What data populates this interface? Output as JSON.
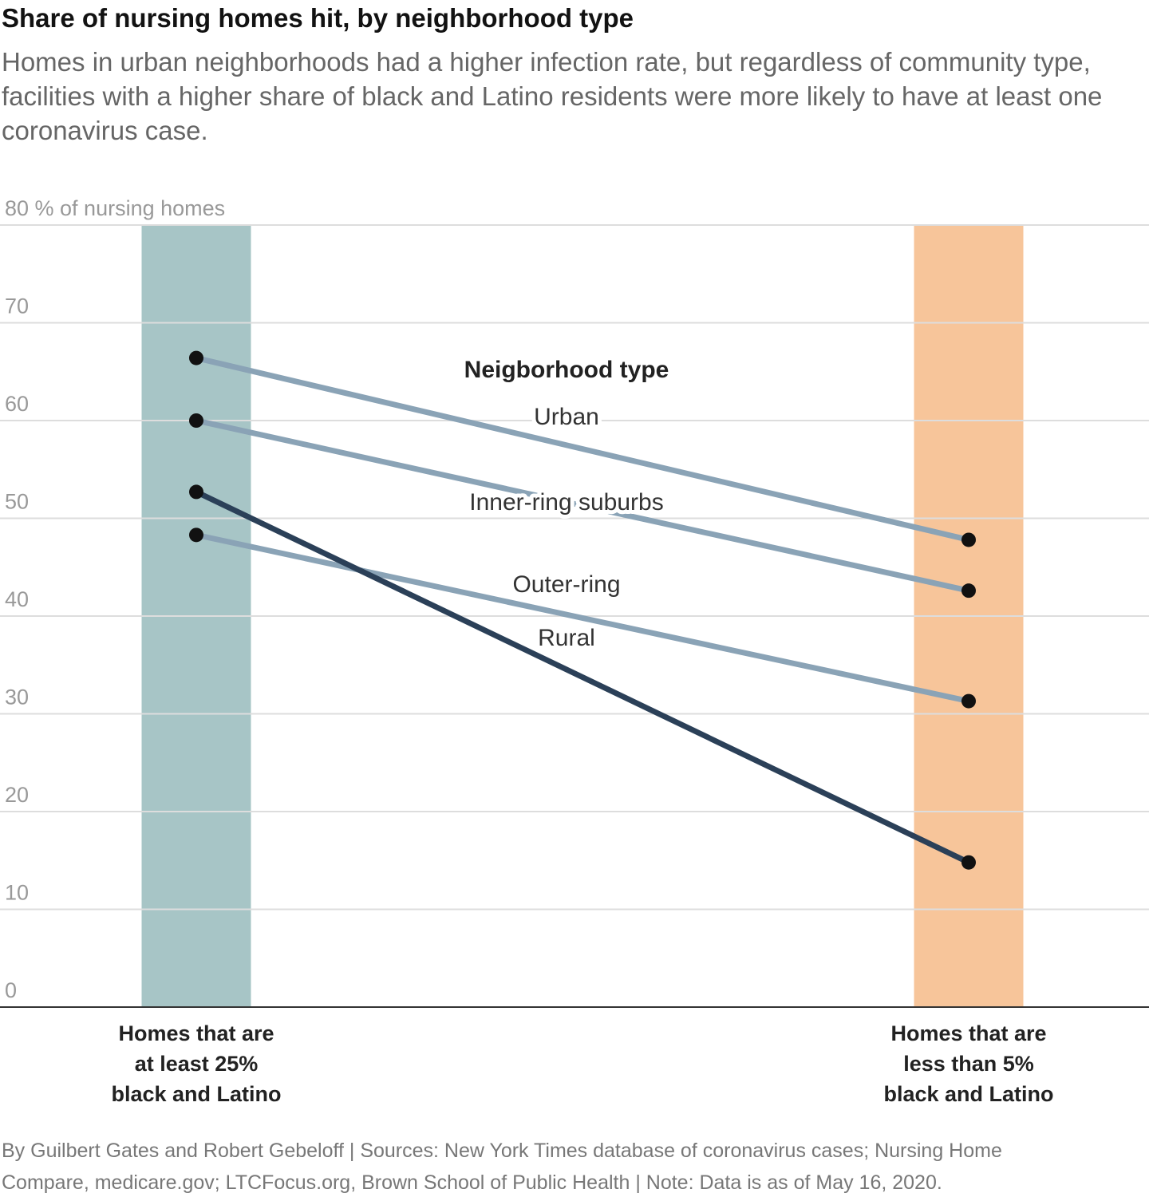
{
  "title": "Share of nursing homes hit, by neighborhood type",
  "subtitle": "Homes in urban neighborhoods had a higher infection rate, but regardless of community type, facilities with a higher share of black and Latino residents were more likely to have at least one coronavirus case.",
  "footer": {
    "line1": "By Guilbert Gates and Robert Gebeloff | Sources: New York Times database of coronavirus cases; Nursing Home",
    "line2": "Compare, medicare.gov; LTCFocus.org, Brown School of Public Health | Note: Data is as of May 16, 2020."
  },
  "colors": {
    "left_band": "#a7c5c6",
    "right_band": "#f7c59a",
    "light_line": "#8aa3b6",
    "dark_line": "#2b4058",
    "dot": "#111111",
    "grid": "#dddddd"
  },
  "chart_data": {
    "type": "slope",
    "ylabel": "% of nursing homes",
    "ylim": [
      0,
      80
    ],
    "yticks": [
      0,
      10,
      20,
      30,
      40,
      50,
      60,
      70,
      80
    ],
    "top_tick_label": "80 % of nursing homes",
    "categories": [
      [
        "Homes that are",
        "at least 25%",
        "black and Latino"
      ],
      [
        "Homes that are",
        "less than 5%",
        "black and Latino"
      ]
    ],
    "legend_title": "Neigborhood type",
    "series": [
      {
        "name": "Urban",
        "values": [
          66.4,
          47.8
        ],
        "style": "light"
      },
      {
        "name": "Inner-ring suburbs",
        "values": [
          60.0,
          42.6
        ],
        "style": "light"
      },
      {
        "name": "Outer-ring",
        "values": [
          48.3,
          31.3
        ],
        "style": "light"
      },
      {
        "name": "Rural",
        "values": [
          52.7,
          14.8
        ],
        "style": "dark"
      }
    ]
  }
}
